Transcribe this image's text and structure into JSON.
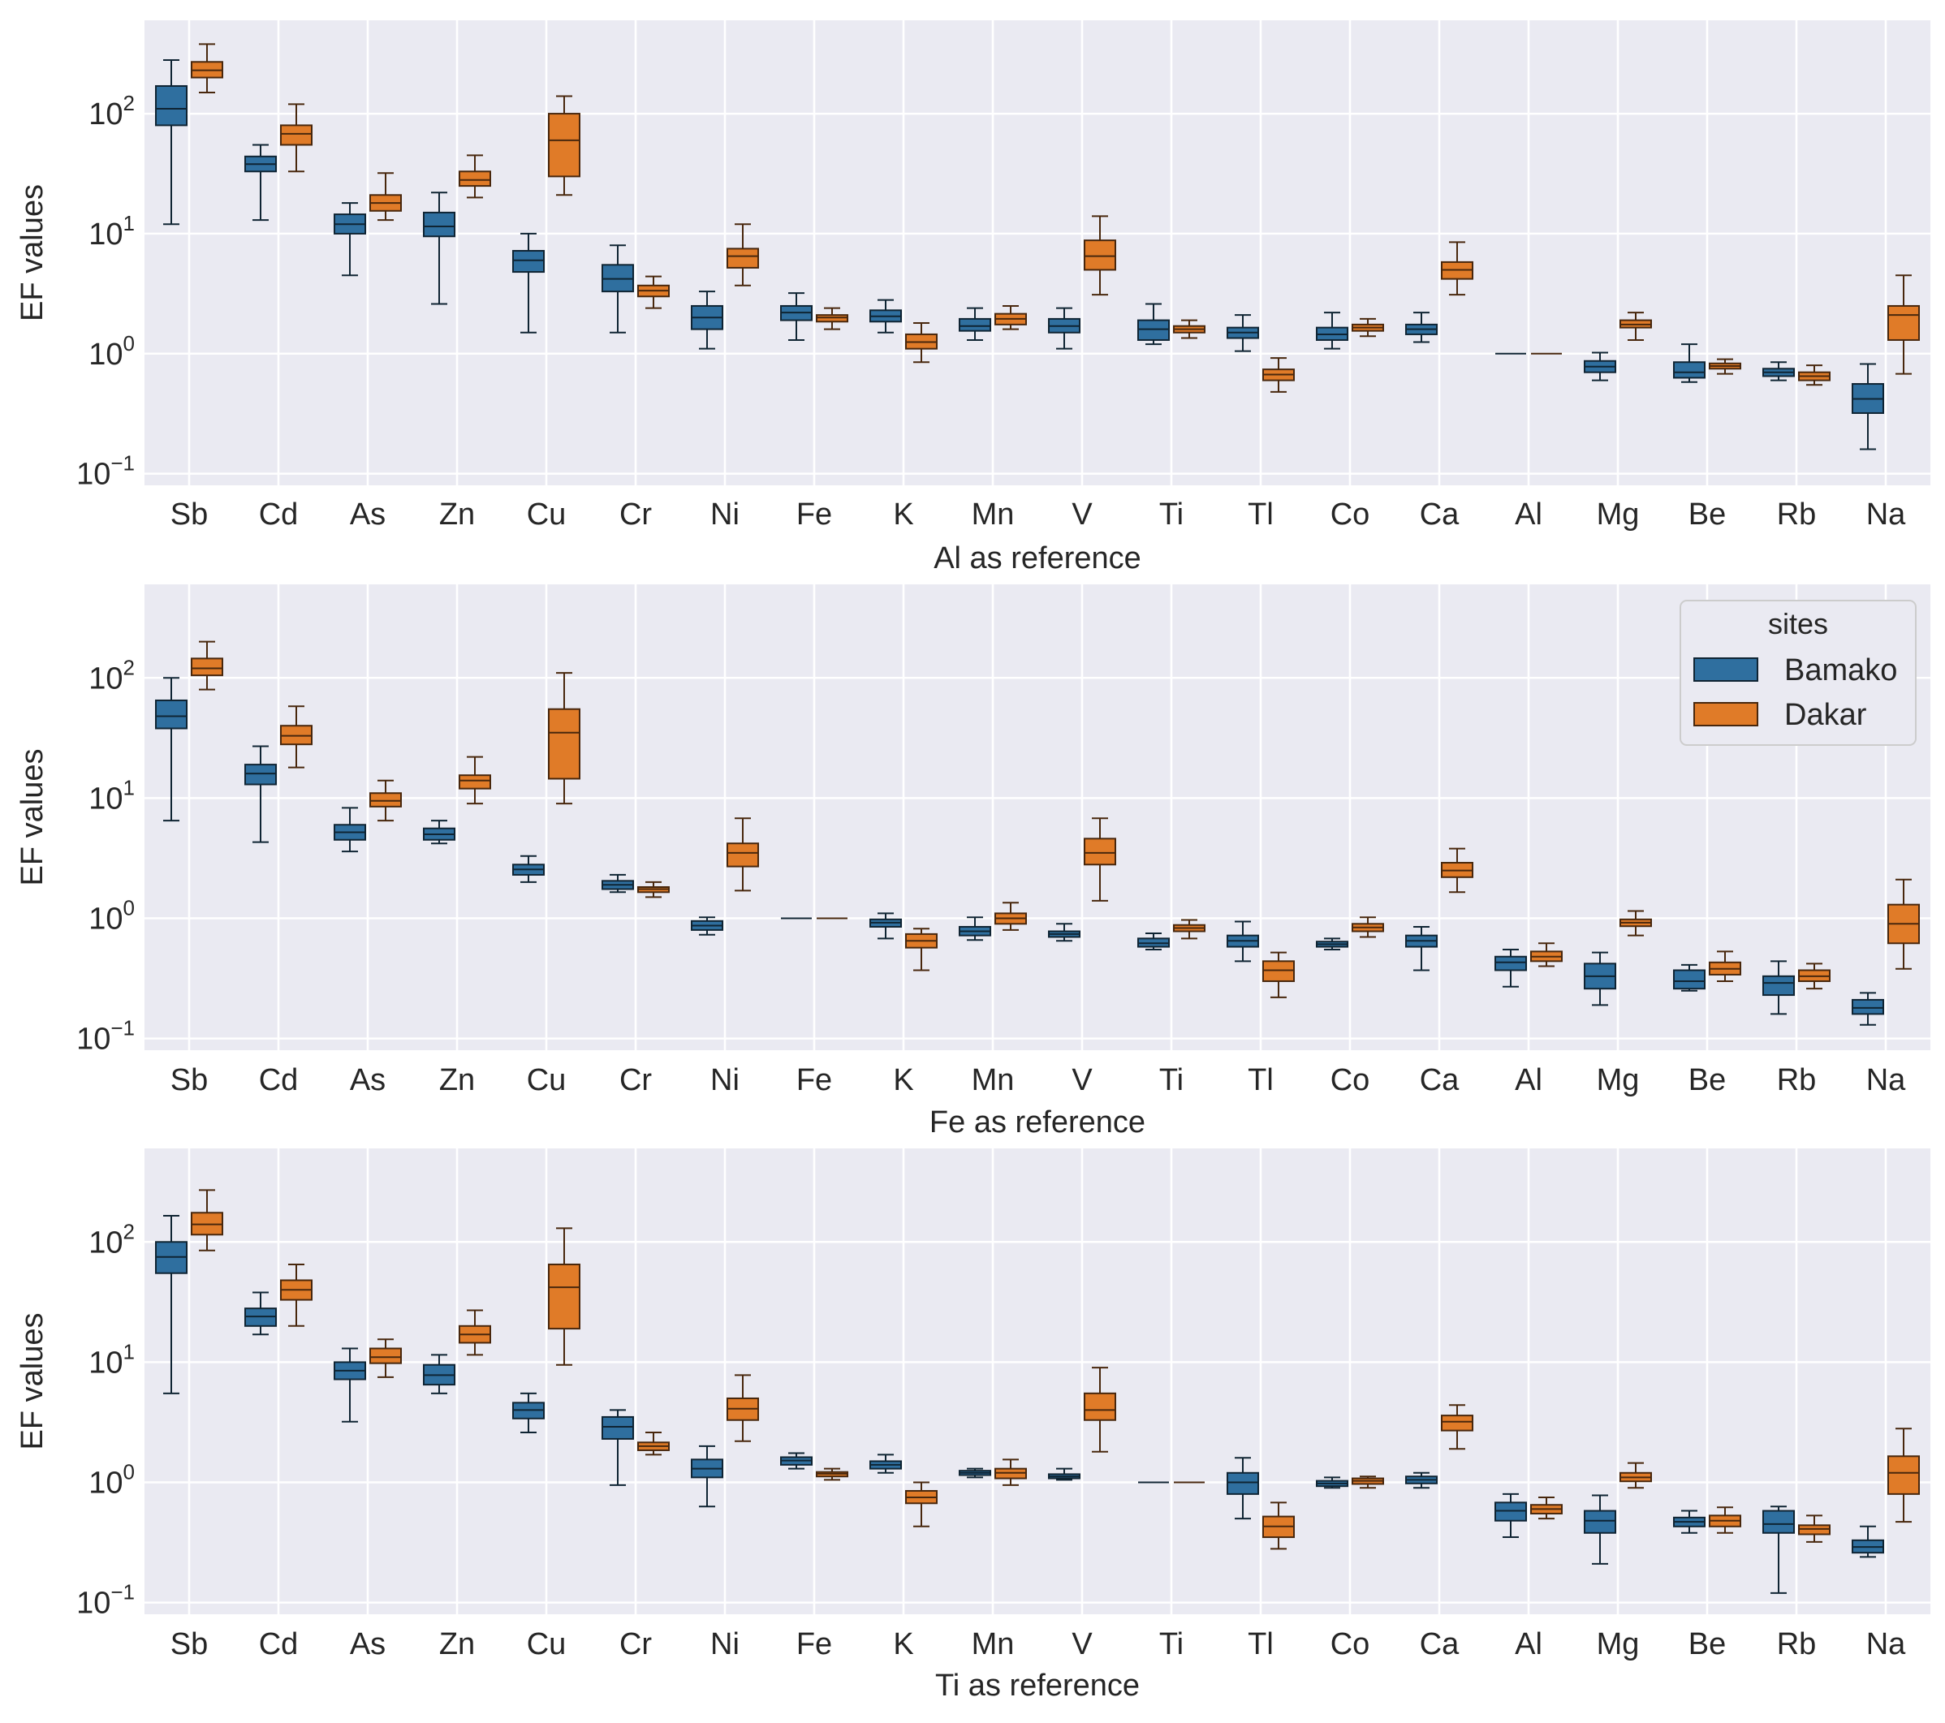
{
  "chart_data": [
    {
      "type": "box",
      "panel": "Al as reference",
      "xlabel": "Al as reference",
      "ylabel": "EF values",
      "yscale": "log",
      "ylim": [
        0.08,
        600
      ],
      "yticks": [
        {
          "base": "10",
          "exp": "−1",
          "value": 0.1
        },
        {
          "base": "10",
          "exp": "0",
          "value": 1
        },
        {
          "base": "10",
          "exp": "1",
          "value": 10
        },
        {
          "base": "10",
          "exp": "2",
          "value": 100
        }
      ],
      "categories": [
        "Sb",
        "Cd",
        "As",
        "Zn",
        "Cu",
        "Cr",
        "Ni",
        "Fe",
        "K",
        "Mn",
        "V",
        "Ti",
        "Tl",
        "Co",
        "Ca",
        "Al",
        "Mg",
        "Be",
        "Rb",
        "Na"
      ],
      "series": [
        {
          "name": "Bamako",
          "color": "#2f6f9f",
          "boxes": [
            [
              12,
              80,
              110,
              170,
              280
            ],
            [
              13,
              33,
              38,
              44,
              55
            ],
            [
              4.5,
              10,
              12,
              14.5,
              18
            ],
            [
              2.6,
              9.5,
              11.5,
              15,
              22
            ],
            [
              1.5,
              4.8,
              6,
              7.2,
              10
            ],
            [
              1.5,
              3.3,
              4.2,
              5.5,
              8
            ],
            [
              1.1,
              1.6,
              2,
              2.5,
              3.3
            ],
            [
              1.3,
              1.9,
              2.2,
              2.5,
              3.2
            ],
            [
              1.5,
              1.85,
              2.05,
              2.3,
              2.8
            ],
            [
              1.3,
              1.55,
              1.7,
              1.95,
              2.4
            ],
            [
              1.1,
              1.5,
              1.7,
              1.95,
              2.4
            ],
            [
              1.2,
              1.3,
              1.6,
              1.9,
              2.6
            ],
            [
              1.05,
              1.35,
              1.5,
              1.65,
              2.1
            ],
            [
              1.1,
              1.3,
              1.45,
              1.65,
              2.2
            ],
            [
              1.25,
              1.45,
              1.6,
              1.75,
              2.2
            ],
            [
              1,
              1,
              1,
              1,
              1
            ],
            [
              0.6,
              0.7,
              0.78,
              0.87,
              1.02
            ],
            [
              0.58,
              0.63,
              0.7,
              0.85,
              1.2
            ],
            [
              0.6,
              0.65,
              0.7,
              0.75,
              0.85
            ],
            [
              0.16,
              0.32,
              0.42,
              0.56,
              0.82
            ]
          ]
        },
        {
          "name": "Dakar",
          "color": "#e07b28",
          "boxes": [
            [
              150,
              200,
              230,
              270,
              380
            ],
            [
              33,
              55,
              68,
              80,
              120
            ],
            [
              13,
              15.5,
              18,
              21,
              32
            ],
            [
              20,
              25,
              28,
              33,
              45
            ],
            [
              21,
              30,
              60,
              100,
              140
            ],
            [
              2.4,
              3,
              3.35,
              3.7,
              4.4
            ],
            [
              3.7,
              5.2,
              6.5,
              7.5,
              12
            ],
            [
              1.6,
              1.85,
              2,
              2.1,
              2.4
            ],
            [
              0.85,
              1.1,
              1.25,
              1.45,
              1.8
            ],
            [
              1.6,
              1.75,
              1.95,
              2.15,
              2.5
            ],
            [
              3.1,
              5,
              6.5,
              8.8,
              14
            ],
            [
              1.35,
              1.5,
              1.6,
              1.7,
              1.9
            ],
            [
              0.48,
              0.6,
              0.67,
              0.74,
              0.92
            ],
            [
              1.4,
              1.55,
              1.65,
              1.75,
              1.95
            ],
            [
              3.1,
              4.2,
              5,
              5.8,
              8.5
            ],
            [
              1,
              1,
              1,
              1,
              1
            ],
            [
              1.3,
              1.65,
              1.75,
              1.9,
              2.2
            ],
            [
              0.68,
              0.75,
              0.79,
              0.83,
              0.9
            ],
            [
              0.55,
              0.6,
              0.65,
              0.7,
              0.8
            ],
            [
              0.68,
              1.3,
              2.1,
              2.5,
              4.5
            ]
          ]
        }
      ]
    },
    {
      "type": "box",
      "panel": "Fe as reference",
      "xlabel": "Fe as reference",
      "ylabel": "EF values",
      "yscale": "log",
      "ylim": [
        0.08,
        600
      ],
      "yticks": [
        {
          "base": "10",
          "exp": "−1",
          "value": 0.1
        },
        {
          "base": "10",
          "exp": "0",
          "value": 1
        },
        {
          "base": "10",
          "exp": "1",
          "value": 10
        },
        {
          "base": "10",
          "exp": "2",
          "value": 100
        }
      ],
      "categories": [
        "Sb",
        "Cd",
        "As",
        "Zn",
        "Cu",
        "Cr",
        "Ni",
        "Fe",
        "K",
        "Mn",
        "V",
        "Ti",
        "Tl",
        "Co",
        "Ca",
        "Al",
        "Mg",
        "Be",
        "Rb",
        "Na"
      ],
      "legend": {
        "title": "sites",
        "position": "upper right",
        "entries": [
          "Bamako",
          "Dakar"
        ]
      },
      "series": [
        {
          "name": "Bamako",
          "color": "#2f6f9f",
          "boxes": [
            [
              6.5,
              38,
              48,
              65,
              100
            ],
            [
              4.3,
              13,
              16,
              19,
              27
            ],
            [
              3.6,
              4.5,
              5.2,
              6,
              8.3
            ],
            [
              4.2,
              4.5,
              5,
              5.6,
              6.5
            ],
            [
              2,
              2.3,
              2.55,
              2.8,
              3.3
            ],
            [
              1.65,
              1.75,
              1.9,
              2.05,
              2.3
            ],
            [
              0.73,
              0.8,
              0.87,
              0.95,
              1.02
            ],
            [
              1,
              1,
              1,
              1,
              1
            ],
            [
              0.68,
              0.85,
              0.92,
              0.98,
              1.1
            ],
            [
              0.66,
              0.72,
              0.78,
              0.85,
              1.02
            ],
            [
              0.65,
              0.7,
              0.74,
              0.78,
              0.9
            ],
            [
              0.55,
              0.58,
              0.62,
              0.68,
              0.75
            ],
            [
              0.44,
              0.58,
              0.65,
              0.72,
              0.94
            ],
            [
              0.55,
              0.58,
              0.61,
              0.64,
              0.68
            ],
            [
              0.37,
              0.58,
              0.65,
              0.72,
              0.85
            ],
            [
              0.27,
              0.37,
              0.43,
              0.48,
              0.55
            ],
            [
              0.19,
              0.26,
              0.33,
              0.42,
              0.52
            ],
            [
              0.25,
              0.26,
              0.3,
              0.37,
              0.41
            ],
            [
              0.16,
              0.23,
              0.29,
              0.33,
              0.44
            ],
            [
              0.13,
              0.16,
              0.18,
              0.21,
              0.24
            ]
          ]
        },
        {
          "name": "Dakar",
          "color": "#e07b28",
          "boxes": [
            [
              80,
              105,
              120,
              145,
              200
            ],
            [
              18,
              28,
              33,
              40,
              58
            ],
            [
              6.5,
              8.5,
              9.5,
              11,
              14
            ],
            [
              9,
              12,
              14,
              15.5,
              22
            ],
            [
              9,
              14.5,
              35,
              55,
              110
            ],
            [
              1.5,
              1.65,
              1.75,
              1.82,
              2
            ],
            [
              1.7,
              2.7,
              3.5,
              4.2,
              6.8
            ],
            [
              1,
              1,
              1,
              1,
              1
            ],
            [
              0.37,
              0.57,
              0.65,
              0.74,
              0.82
            ],
            [
              0.8,
              0.9,
              1,
              1.1,
              1.35
            ],
            [
              1.4,
              2.8,
              3.5,
              4.6,
              6.8
            ],
            [
              0.68,
              0.78,
              0.83,
              0.88,
              0.97
            ],
            [
              0.22,
              0.3,
              0.37,
              0.44,
              0.52
            ],
            [
              0.7,
              0.78,
              0.84,
              0.9,
              1.02
            ],
            [
              1.65,
              2.2,
              2.5,
              2.9,
              3.8
            ],
            [
              0.4,
              0.44,
              0.48,
              0.53,
              0.62
            ],
            [
              0.72,
              0.86,
              0.92,
              0.98,
              1.15
            ],
            [
              0.3,
              0.34,
              0.38,
              0.43,
              0.53
            ],
            [
              0.26,
              0.3,
              0.33,
              0.37,
              0.42
            ],
            [
              0.38,
              0.62,
              0.9,
              1.3,
              2.1
            ]
          ]
        }
      ]
    },
    {
      "type": "box",
      "panel": "Ti as reference",
      "xlabel": "Ti as reference",
      "ylabel": "EF values",
      "yscale": "log",
      "ylim": [
        0.08,
        600
      ],
      "yticks": [
        {
          "base": "10",
          "exp": "−1",
          "value": 0.1
        },
        {
          "base": "10",
          "exp": "0",
          "value": 1
        },
        {
          "base": "10",
          "exp": "1",
          "value": 10
        },
        {
          "base": "10",
          "exp": "2",
          "value": 100
        }
      ],
      "categories": [
        "Sb",
        "Cd",
        "As",
        "Zn",
        "Cu",
        "Cr",
        "Ni",
        "Fe",
        "K",
        "Mn",
        "V",
        "Ti",
        "Tl",
        "Co",
        "Ca",
        "Al",
        "Mg",
        "Be",
        "Rb",
        "Na"
      ],
      "series": [
        {
          "name": "Bamako",
          "color": "#2f6f9f",
          "boxes": [
            [
              5.5,
              55,
              75,
              100,
              165
            ],
            [
              17,
              20,
              24,
              28,
              38
            ],
            [
              3.2,
              7.2,
              8.5,
              10,
              13
            ],
            [
              5.5,
              6.5,
              7.8,
              9.5,
              11.5
            ],
            [
              2.6,
              3.4,
              4,
              4.6,
              5.5
            ],
            [
              0.95,
              2.3,
              2.9,
              3.5,
              4
            ],
            [
              0.63,
              1.1,
              1.3,
              1.55,
              2
            ],
            [
              1.3,
              1.4,
              1.52,
              1.62,
              1.75
            ],
            [
              1.2,
              1.3,
              1.4,
              1.5,
              1.7
            ],
            [
              1.1,
              1.15,
              1.2,
              1.25,
              1.3
            ],
            [
              1.05,
              1.08,
              1.12,
              1.17,
              1.3
            ],
            [
              1,
              1,
              1,
              1,
              1
            ],
            [
              0.5,
              0.8,
              1,
              1.2,
              1.6
            ],
            [
              0.9,
              0.93,
              0.98,
              1.03,
              1.1
            ],
            [
              0.9,
              0.98,
              1.05,
              1.12,
              1.2
            ],
            [
              0.35,
              0.48,
              0.58,
              0.68,
              0.8
            ],
            [
              0.21,
              0.38,
              0.48,
              0.58,
              0.78
            ],
            [
              0.38,
              0.43,
              0.47,
              0.51,
              0.58
            ],
            [
              0.12,
              0.38,
              0.45,
              0.58,
              0.63
            ],
            [
              0.24,
              0.26,
              0.29,
              0.33,
              0.43
            ]
          ]
        },
        {
          "name": "Dakar",
          "color": "#e07b28",
          "boxes": [
            [
              85,
              115,
              140,
              175,
              270
            ],
            [
              20,
              33,
              40,
              48,
              65
            ],
            [
              7.5,
              9.8,
              11,
              13,
              15.5
            ],
            [
              11.5,
              14.5,
              17,
              20,
              27
            ],
            [
              9.5,
              19,
              42,
              65,
              130
            ],
            [
              1.7,
              1.85,
              2,
              2.15,
              2.6
            ],
            [
              2.2,
              3.3,
              4.1,
              5,
              7.8
            ],
            [
              1.05,
              1.12,
              1.18,
              1.22,
              1.3
            ],
            [
              0.43,
              0.67,
              0.75,
              0.85,
              1
            ],
            [
              0.95,
              1.08,
              1.2,
              1.3,
              1.55
            ],
            [
              1.8,
              3.3,
              4,
              5.5,
              9
            ],
            [
              1,
              1,
              1,
              1,
              1
            ],
            [
              0.28,
              0.35,
              0.43,
              0.52,
              0.68
            ],
            [
              0.9,
              0.97,
              1.03,
              1.08,
              1.12
            ],
            [
              1.9,
              2.7,
              3.2,
              3.6,
              4.4
            ],
            [
              0.5,
              0.55,
              0.6,
              0.65,
              0.75
            ],
            [
              0.9,
              1.02,
              1.1,
              1.2,
              1.45
            ],
            [
              0.38,
              0.43,
              0.48,
              0.53,
              0.62
            ],
            [
              0.32,
              0.37,
              0.41,
              0.44,
              0.53
            ],
            [
              0.47,
              0.8,
              1.2,
              1.65,
              2.8
            ]
          ]
        }
      ]
    }
  ]
}
